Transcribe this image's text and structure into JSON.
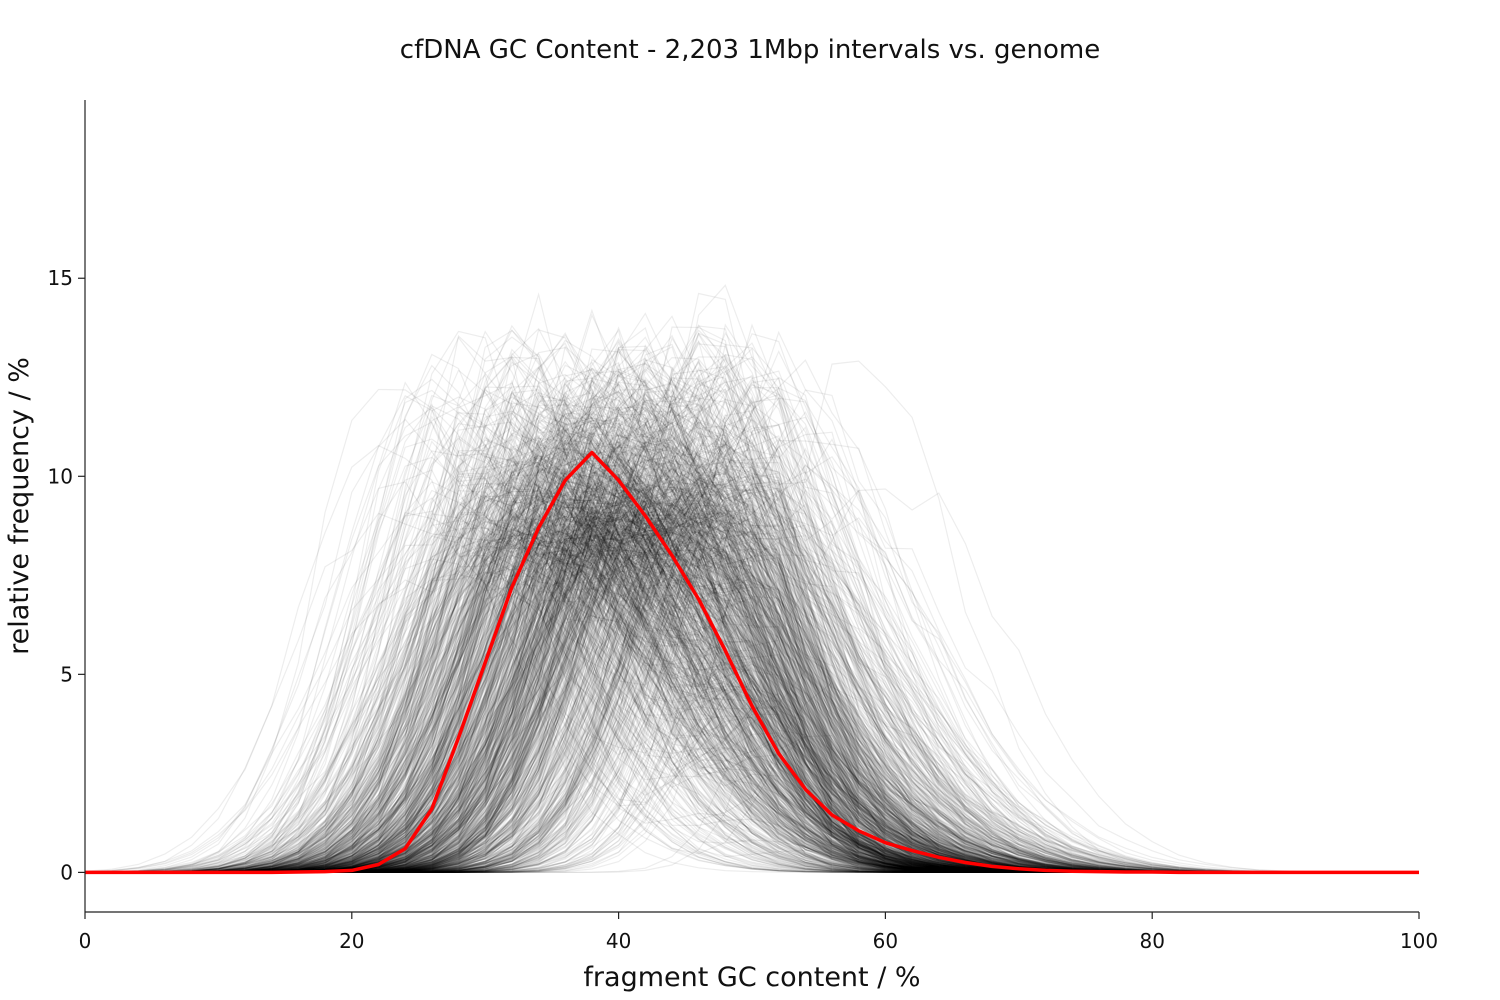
{
  "chart_data": {
    "type": "line",
    "title": "cfDNA GC Content - 2,203 1Mbp intervals vs. genome",
    "xlabel": "fragment GC content / %",
    "ylabel": "relative frequency / %",
    "xlim": [
      0,
      100
    ],
    "ylim": [
      -1,
      19.5
    ],
    "xticks": [
      0,
      20,
      40,
      60,
      80,
      100
    ],
    "yticks": [
      0,
      5,
      10,
      15
    ],
    "grid": false,
    "legend": "none",
    "interval_curve_count": 2203,
    "colors": {
      "intervals": "#000000",
      "genome": "#ff0000"
    },
    "series": [
      {
        "x": [
          0,
          2,
          4,
          6,
          8,
          10,
          12,
          14,
          16,
          18,
          20,
          22,
          24,
          26,
          28,
          30,
          32,
          34,
          36,
          38,
          40,
          42,
          44,
          46,
          48,
          50,
          52,
          54,
          56,
          58,
          60,
          62,
          64,
          66,
          68,
          70,
          72,
          74,
          76,
          78,
          80,
          82,
          84,
          86,
          88,
          90,
          92,
          94,
          96,
          98,
          100
        ],
        "values": [
          0,
          0,
          0,
          0,
          0,
          0,
          0,
          0,
          0.01,
          0.02,
          0.05,
          0.2,
          0.6,
          1.6,
          3.4,
          5.3,
          7.2,
          8.7,
          9.9,
          10.6,
          9.9,
          9.0,
          8.0,
          6.9,
          5.6,
          4.2,
          3.0,
          2.1,
          1.45,
          1.05,
          0.75,
          0.55,
          0.38,
          0.25,
          0.15,
          0.09,
          0.05,
          0.03,
          0.02,
          0.01,
          0.01,
          0,
          0,
          0,
          0,
          0,
          0,
          0,
          0,
          0,
          0
        ]
      }
    ]
  }
}
